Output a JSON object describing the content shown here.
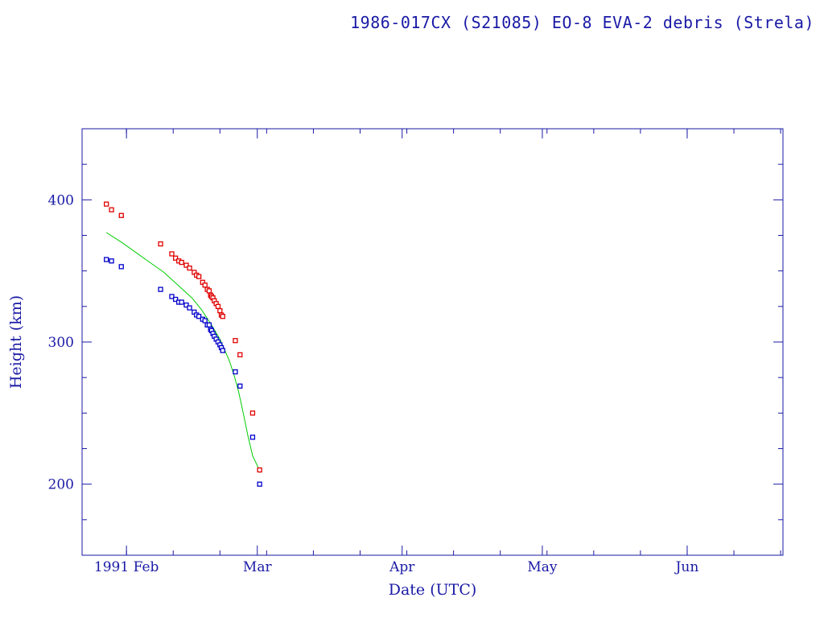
{
  "chart_data": {
    "type": "scatter",
    "title": "1986-017CX (S21085) EO-8 EVA-2 debris (Strela)",
    "xlabel": "Date (UTC)",
    "ylabel": "Height (km)",
    "xlim_days": [
      -9.5,
      140.5
    ],
    "ylim": [
      150,
      450
    ],
    "x_ticks": [
      {
        "label": "1991 Feb",
        "day": 0
      },
      {
        "label": "Mar",
        "day": 28
      },
      {
        "label": "Apr",
        "day": 59
      },
      {
        "label": "May",
        "day": 89
      },
      {
        "label": "Jun",
        "day": 120
      }
    ],
    "y_ticks": [
      200,
      300,
      400
    ],
    "colors": {
      "axis": "#1a1aa6",
      "apogee": "#e00000",
      "perigee": "#0000cc",
      "fit": "#00cc00"
    },
    "series": [
      {
        "name": "apogee",
        "x": [
          -4.3,
          -3.2,
          -1.1,
          7.3,
          9.7,
          10.5,
          11.2,
          11.8,
          12.8,
          13.5,
          14.5,
          15.0,
          15.5,
          16.3,
          16.8,
          17.3,
          17.7,
          18.0,
          18.2,
          18.5,
          18.8,
          19.2,
          19.6,
          20.0,
          20.3,
          20.6,
          23.3,
          24.3,
          27.0,
          28.5
        ],
        "y": [
          397,
          393,
          389,
          369,
          362,
          359,
          357,
          356,
          354,
          352,
          349,
          347,
          346,
          342,
          340,
          337,
          336,
          333,
          332,
          331,
          329,
          327,
          325,
          322,
          319,
          318,
          301,
          291,
          250,
          210
        ]
      },
      {
        "name": "perigee",
        "x": [
          -4.3,
          -3.2,
          -1.1,
          7.3,
          9.7,
          10.5,
          11.2,
          11.8,
          12.8,
          13.5,
          14.5,
          15.0,
          15.5,
          16.3,
          16.8,
          17.3,
          17.7,
          18.0,
          18.2,
          18.5,
          18.8,
          19.2,
          19.6,
          20.0,
          20.3,
          20.6,
          23.3,
          24.3,
          27.0,
          28.5
        ],
        "y": [
          358,
          357,
          353,
          337,
          332,
          330,
          328,
          328,
          326,
          324,
          321,
          319,
          318,
          316,
          315,
          312,
          312,
          309,
          308,
          306,
          304,
          302,
          300,
          298,
          296,
          294,
          279,
          269,
          233,
          200
        ]
      },
      {
        "name": "fit",
        "x": [
          -4.3,
          -1,
          2,
          5,
          8,
          11,
          14,
          16,
          18,
          20,
          22,
          23,
          24,
          25,
          26,
          27,
          28,
          28.6
        ],
        "y": [
          377,
          370,
          363,
          356,
          349,
          340,
          331,
          323,
          313,
          302,
          287,
          277,
          265,
          250,
          234,
          220,
          213,
          208
        ]
      }
    ]
  }
}
